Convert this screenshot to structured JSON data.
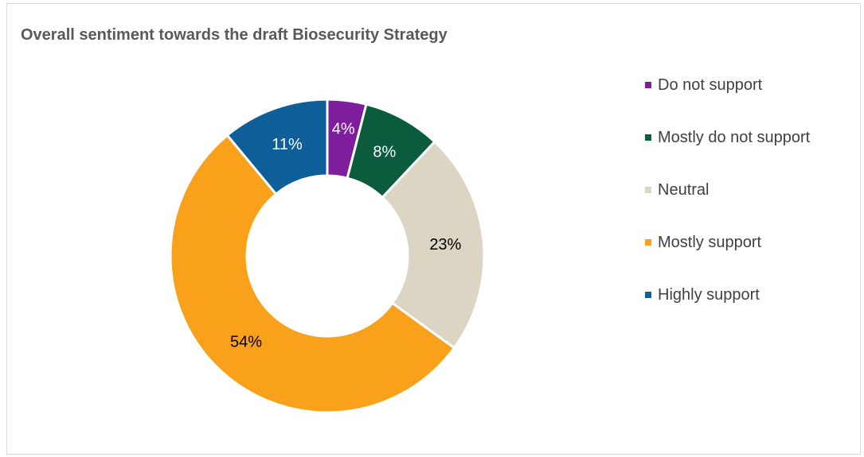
{
  "chart_data": {
    "type": "pie",
    "title": "Overall sentiment towards the draft Biosecurity Strategy",
    "categories": [
      "Do not support",
      "Mostly do not support",
      "Neutral",
      "Mostly support",
      "Highly support"
    ],
    "values": [
      4,
      8,
      23,
      54,
      11
    ],
    "value_labels": [
      "4%",
      "8%",
      "23%",
      "54%",
      "11%"
    ],
    "unit": "%",
    "colors": [
      "#7E1E9C",
      "#0A5C3C",
      "#DDD5C3",
      "#F9A11B",
      "#0E5F99"
    ],
    "label_colors": [
      "#ffffff",
      "#ffffff",
      "#000000",
      "#000000",
      "#ffffff"
    ],
    "donut": true,
    "legend": "right"
  }
}
